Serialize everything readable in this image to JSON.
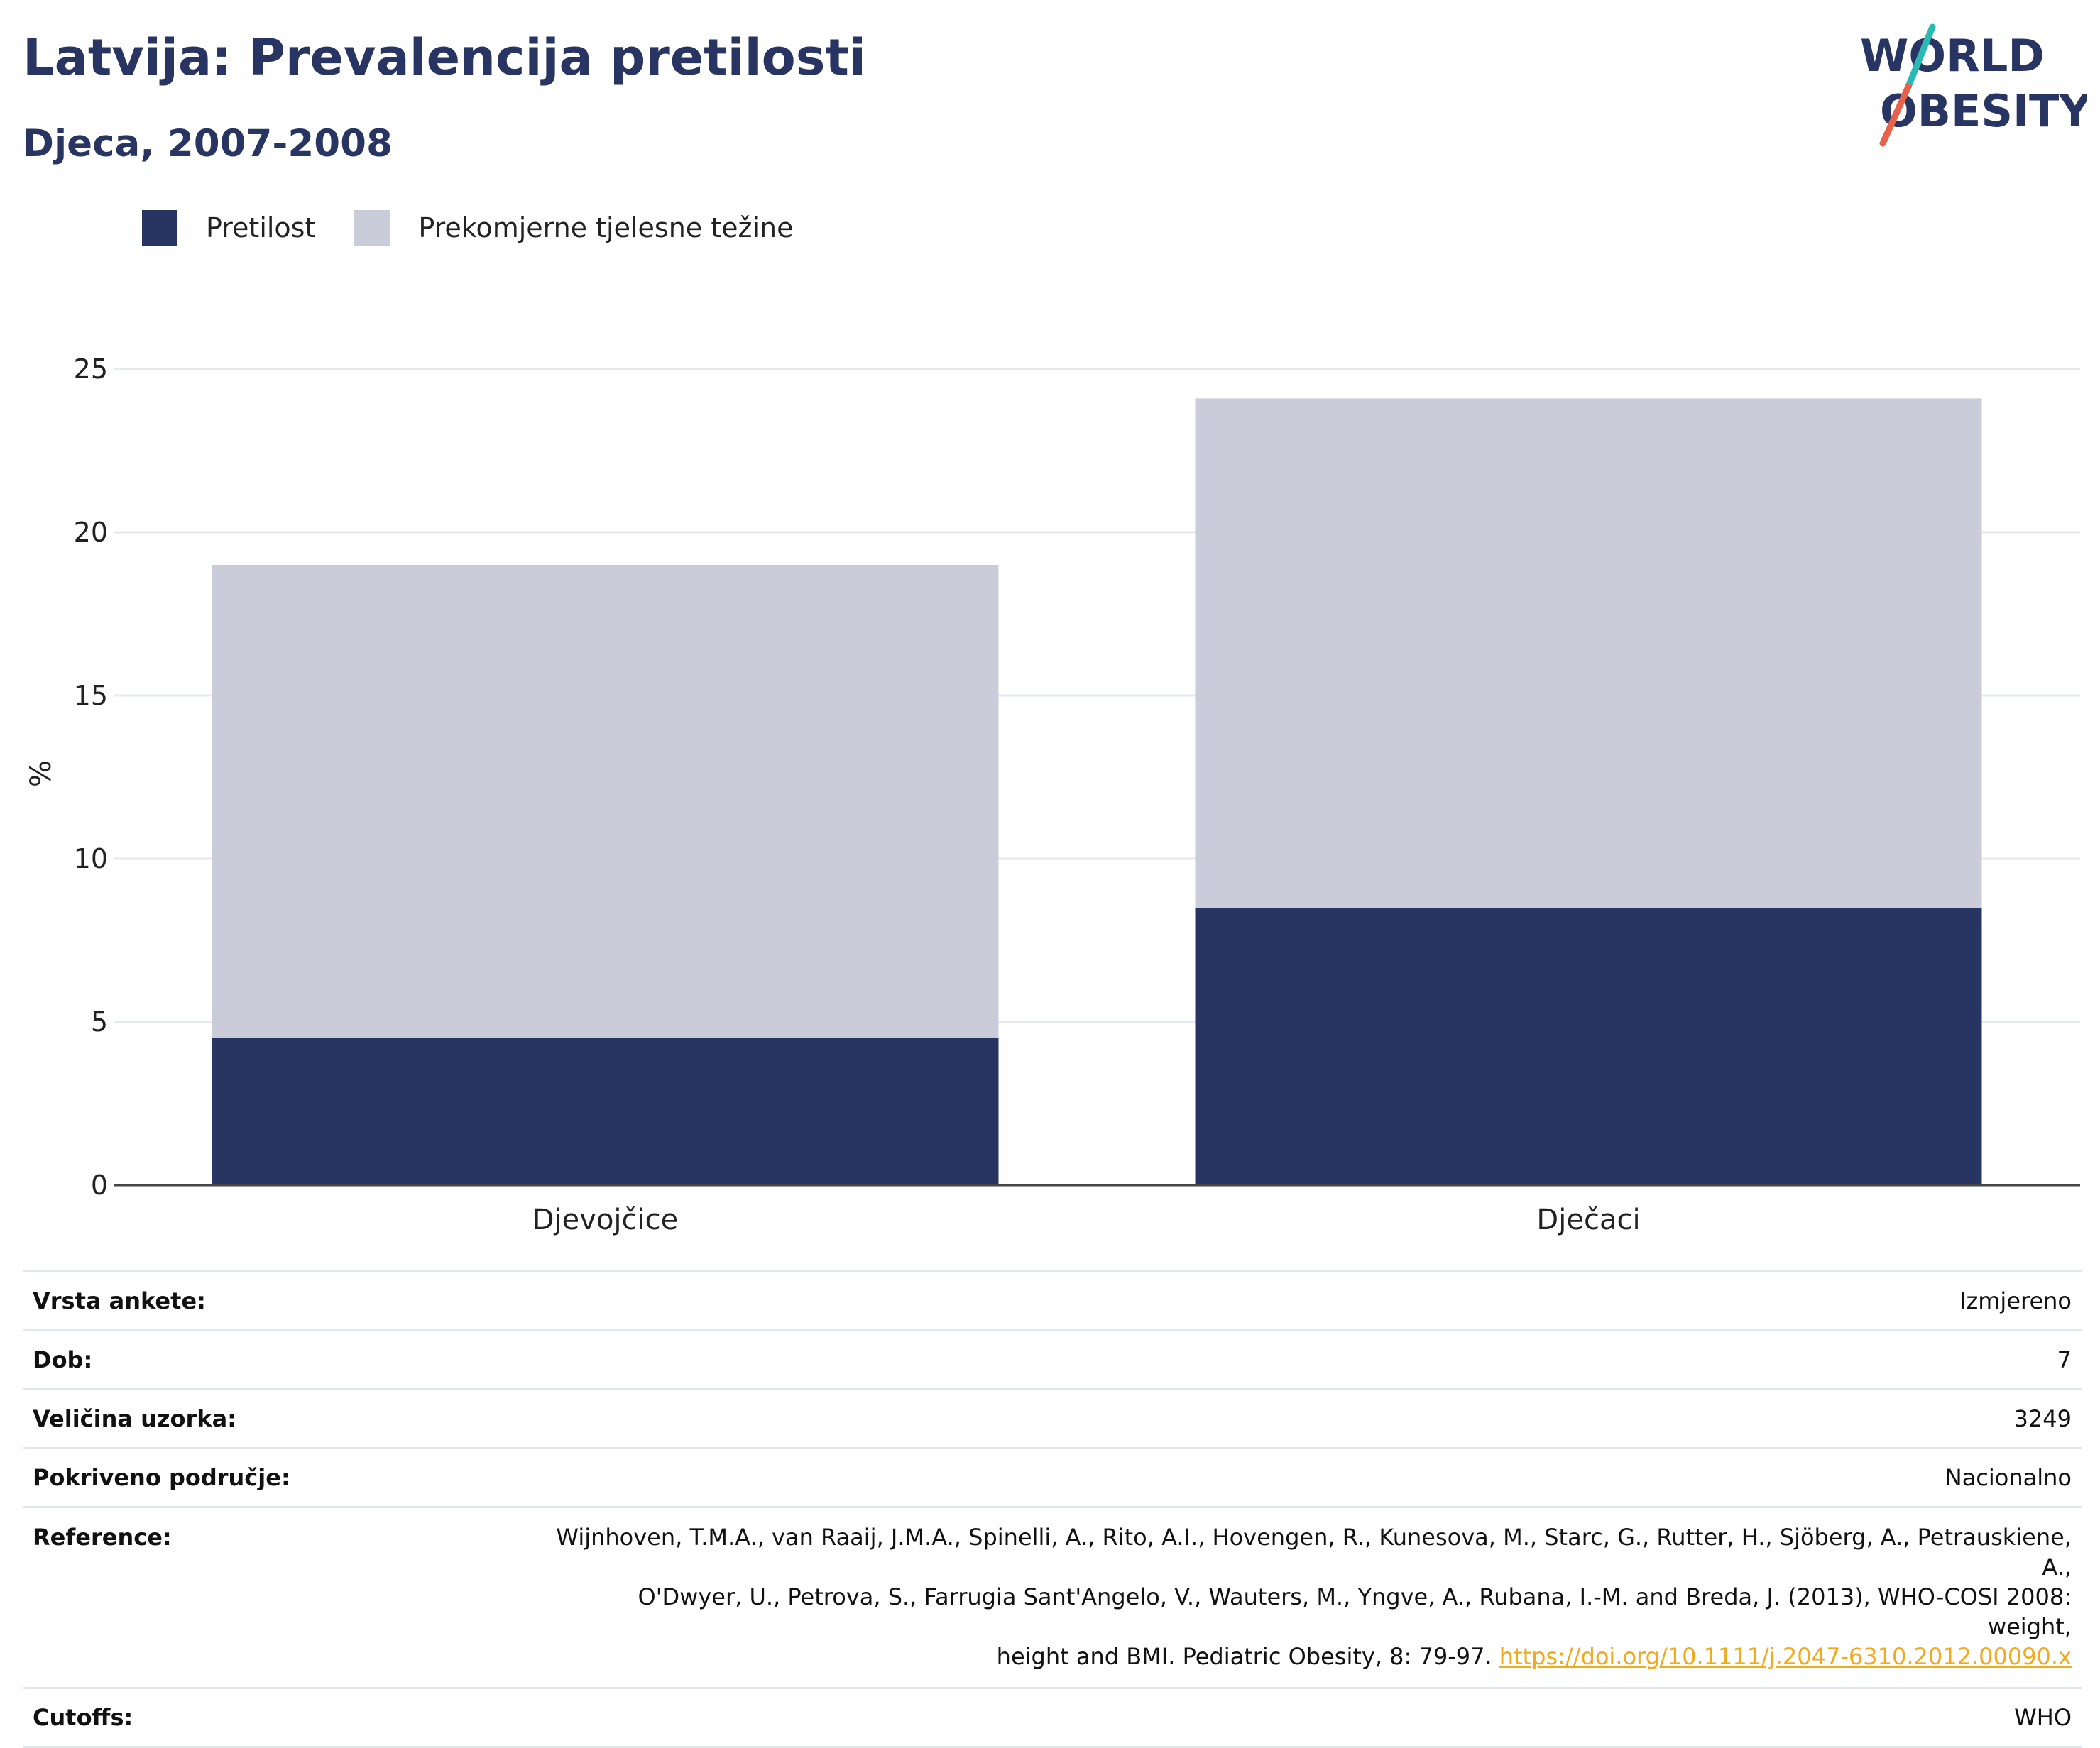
{
  "title": "Latvija: Prevalencija pretilosti",
  "subtitle": "Djeca, 2007-2008",
  "logo": {
    "line1": "WORLD",
    "line2": "OBESITY"
  },
  "colors": {
    "obesity": "#283562",
    "overweight": "#cacdd9",
    "accent_teal": "#2bb9b4",
    "accent_red": "#e8624b",
    "link": "#f2a91e"
  },
  "chart_data": {
    "type": "bar",
    "stacked": true,
    "categories": [
      "Djevojčice",
      "Dječaci"
    ],
    "series": [
      {
        "name": "Pretilost",
        "values": [
          4.5,
          8.5
        ],
        "color": "#283562"
      },
      {
        "name": "Prekomjerne tjelesne težine",
        "values": [
          14.5,
          15.6
        ],
        "color": "#cacdd9"
      }
    ],
    "ylabel": "%",
    "xlabel": "",
    "ylim": [
      0,
      25
    ],
    "yticks": [
      0,
      5,
      10,
      15,
      20,
      25
    ],
    "grid": true,
    "legend_position": "top-left"
  },
  "info": {
    "survey_type": {
      "label": "Vrsta ankete:",
      "value": "Izmjereno"
    },
    "age": {
      "label": "Dob:",
      "value": "7"
    },
    "sample_size": {
      "label": "Veličina uzorka:",
      "value": "3249"
    },
    "coverage": {
      "label": "Pokriveno područje:",
      "value": "Nacionalno"
    },
    "reference": {
      "label": "Reference:",
      "line1": "Wijnhoven, T.M.A., van Raaij, J.M.A., Spinelli, A., Rito, A.I., Hovengen, R., Kunesova, M., Starc, G., Rutter, H., Sjöberg, A., Petrauskiene, A.,",
      "line2": "O'Dwyer, U., Petrova, S., Farrugia Sant'Angelo, V., Wauters, M., Yngve, A., Rubana, I.-M. and Breda, J. (2013), WHO-COSI 2008: weight,",
      "line3": "height and BMI. Pediatric Obesity, 8: 79-97.",
      "link": "https://doi.org/10.1111/j.2047-6310.2012.00090.x"
    },
    "cutoffs": {
      "label": "Cutoffs:",
      "value": "WHO"
    }
  }
}
